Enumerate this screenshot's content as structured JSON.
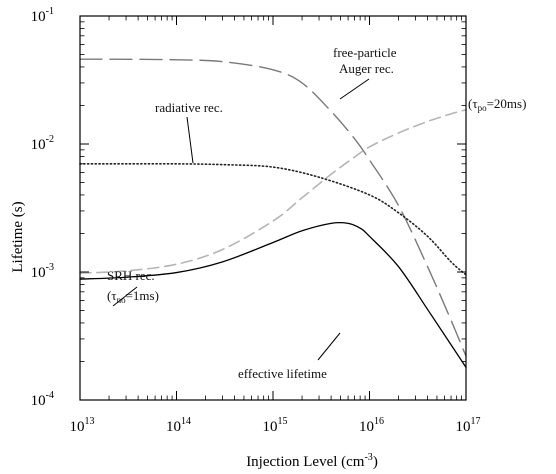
{
  "chart_data": {
    "type": "line",
    "xlabel": "Injection Level (cm",
    "xlabel_exp": "-3",
    "xlabel_tail": ")",
    "ylabel": "Lifetime (s)",
    "x_scale": "log",
    "y_scale": "log",
    "xlim": [
      10000000000000.0,
      1e+17
    ],
    "ylim": [
      0.0001,
      0.1
    ],
    "x_ticks": [
      {
        "base": "10",
        "exp": "13",
        "value": 10000000000000.0
      },
      {
        "base": "10",
        "exp": "14",
        "value": 100000000000000.0
      },
      {
        "base": "10",
        "exp": "15",
        "value": 1000000000000000.0
      },
      {
        "base": "10",
        "exp": "16",
        "value": 1e+16
      },
      {
        "base": "10",
        "exp": "17",
        "value": 1e+17
      }
    ],
    "y_ticks": [
      {
        "base": "10",
        "exp": "-4",
        "value": 0.0001
      },
      {
        "base": "10",
        "exp": "-3",
        "value": 0.001
      },
      {
        "base": "10",
        "exp": "-2",
        "value": 0.01
      },
      {
        "base": "10",
        "exp": "-1",
        "value": 0.1
      }
    ],
    "grid": false,
    "series": [
      {
        "name": "free-particle Auger rec.",
        "style": "long-dash",
        "color": "#7a7a7a",
        "x": [
          10000000000000.0,
          30000000000000.0,
          100000000000000.0,
          300000000000000.0,
          1000000000000000.0,
          2000000000000000.0,
          4000000000000000.0,
          7000000000000000.0,
          1e+16,
          2e+16,
          4e+16,
          7e+16,
          1e+17
        ],
        "y": [
          0.046,
          0.0459,
          0.0455,
          0.044,
          0.038,
          0.03,
          0.018,
          0.011,
          0.0075,
          0.0033,
          0.0011,
          0.00042,
          0.00022
        ]
      },
      {
        "name": "radiative rec.",
        "style": "dotted",
        "color": "#222222",
        "x": [
          10000000000000.0,
          30000000000000.0,
          100000000000000.0,
          300000000000000.0,
          1000000000000000.0,
          3000000000000000.0,
          1e+16,
          2e+16,
          4e+16,
          7e+16,
          1e+17
        ],
        "y": [
          0.007,
          0.007,
          0.007,
          0.0069,
          0.0066,
          0.0055,
          0.004,
          0.0029,
          0.0019,
          0.0012,
          0.00095
        ]
      },
      {
        "name": "SRH rec.",
        "style": "dashed",
        "color": "#b5b5b5",
        "x": [
          10000000000000.0,
          30000000000000.0,
          100000000000000.0,
          300000000000000.0,
          1000000000000000.0,
          2000000000000000.0,
          4000000000000000.0,
          7000000000000000.0,
          1e+16,
          2e+16,
          4e+16,
          7e+16,
          1e+17
        ],
        "y": [
          0.00098,
          0.00102,
          0.00115,
          0.0015,
          0.0025,
          0.0038,
          0.0058,
          0.0079,
          0.0095,
          0.0122,
          0.015,
          0.0172,
          0.0185
        ]
      },
      {
        "name": "effective lifetime",
        "style": "solid",
        "color": "#000000",
        "x": [
          10000000000000.0,
          30000000000000.0,
          100000000000000.0,
          300000000000000.0,
          1000000000000000.0,
          2000000000000000.0,
          4000000000000000.0,
          6000000000000000.0,
          8000000000000000.0,
          1e+16,
          2e+16,
          4e+16,
          7e+16,
          1e+17
        ],
        "y": [
          0.00088,
          0.00091,
          0.00099,
          0.0012,
          0.0017,
          0.0021,
          0.0024,
          0.0024,
          0.0022,
          0.0019,
          0.0011,
          0.00051,
          0.00027,
          0.00018
        ]
      }
    ],
    "annotations": {
      "auger_line1": "free-particle",
      "auger_line2": "Auger rec.",
      "radiative": "radiative rec.",
      "srh_line1": "SRH rec.",
      "srh_line2_pre": "(τ",
      "srh_line2_sub": "no",
      "srh_line2_post": "=1ms)",
      "tau_po_pre": "(τ",
      "tau_po_sub": "po",
      "tau_po_post": "=20ms)",
      "effective": "effective lifetime"
    }
  }
}
